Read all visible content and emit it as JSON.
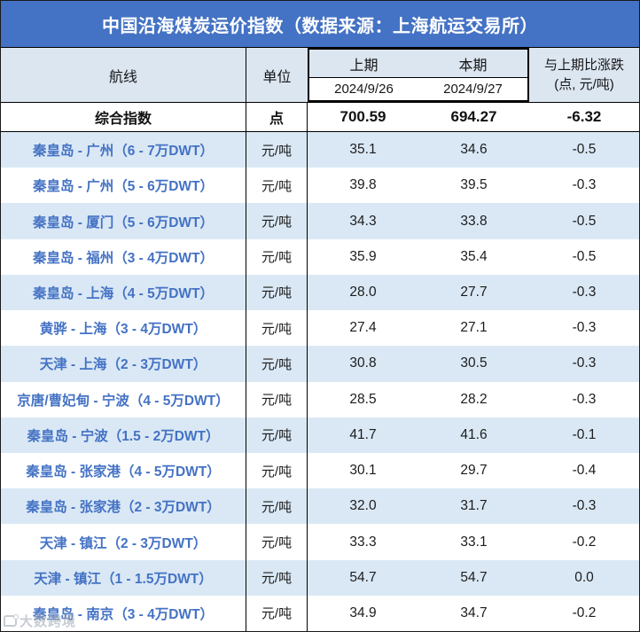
{
  "title": "中国沿海煤炭运价指数（数据来源：上海航运交易所）",
  "header": {
    "route_label": "航线",
    "unit_label": "单位",
    "prev_period_label": "上期",
    "curr_period_label": "本期",
    "prev_date": "2024/9/26",
    "curr_date": "2024/9/27",
    "change_label_line1": "与上期比涨跌",
    "change_label_line2": "(点, 元/吨)"
  },
  "summary": {
    "route": "综合指数",
    "unit": "点",
    "prev": "700.59",
    "curr": "694.27",
    "change": "-6.32"
  },
  "rows": [
    {
      "route": "秦皇岛 - 广州（6 - 7万DWT）",
      "unit": "元/吨",
      "prev": "35.1",
      "curr": "34.6",
      "change": "-0.5"
    },
    {
      "route": "秦皇岛 - 广州（5 - 6万DWT）",
      "unit": "元/吨",
      "prev": "39.8",
      "curr": "39.5",
      "change": "-0.3"
    },
    {
      "route": "秦皇岛 - 厦门（5 - 6万DWT）",
      "unit": "元/吨",
      "prev": "34.3",
      "curr": "33.8",
      "change": "-0.5"
    },
    {
      "route": "秦皇岛 - 福州（3 - 4万DWT）",
      "unit": "元/吨",
      "prev": "35.9",
      "curr": "35.4",
      "change": "-0.5"
    },
    {
      "route": "秦皇岛 - 上海（4 - 5万DWT）",
      "unit": "元/吨",
      "prev": "28.0",
      "curr": "27.7",
      "change": "-0.3"
    },
    {
      "route": "黄骅 - 上海（3 - 4万DWT）",
      "unit": "元/吨",
      "prev": "27.4",
      "curr": "27.1",
      "change": "-0.3"
    },
    {
      "route": "天津 - 上海（2 - 3万DWT）",
      "unit": "元/吨",
      "prev": "30.8",
      "curr": "30.5",
      "change": "-0.3"
    },
    {
      "route": "京唐/曹妃甸 - 宁波（4 - 5万DWT）",
      "unit": "元/吨",
      "prev": "28.5",
      "curr": "28.2",
      "change": "-0.3"
    },
    {
      "route": "秦皇岛 - 宁波（1.5 - 2万DWT）",
      "unit": "元/吨",
      "prev": "41.7",
      "curr": "41.6",
      "change": "-0.1"
    },
    {
      "route": "秦皇岛 - 张家港（4 - 5万DWT）",
      "unit": "元/吨",
      "prev": "30.1",
      "curr": "29.7",
      "change": "-0.4"
    },
    {
      "route": "秦皇岛 - 张家港（2 - 3万DWT）",
      "unit": "元/吨",
      "prev": "32.0",
      "curr": "31.7",
      "change": "-0.3"
    },
    {
      "route": "天津 - 镇江（2 - 3万DWT）",
      "unit": "元/吨",
      "prev": "33.3",
      "curr": "33.1",
      "change": "-0.2"
    },
    {
      "route": "天津 - 镇江（1 - 1.5万DWT）",
      "unit": "元/吨",
      "prev": "54.7",
      "curr": "54.7",
      "change": "0.0"
    },
    {
      "route": "秦皇岛 - 南京（3 - 4万DWT）",
      "unit": "元/吨",
      "prev": "34.9",
      "curr": "34.7",
      "change": "-0.2"
    }
  ],
  "watermark": {
    "text": "大数跨境"
  },
  "colors": {
    "title_bg": "#4472C4",
    "header_bg": "#DCE6F1",
    "stripe_bg": "#DAE8F5",
    "route_text": "#4472C4",
    "border": "#000000"
  },
  "chart_data": {
    "type": "table",
    "title": "中国沿海煤炭运价指数（数据来源：上海航运交易所）",
    "columns": [
      "航线",
      "单位",
      "上期 2024/9/26",
      "本期 2024/9/27",
      "与上期比涨跌 (点, 元/吨)"
    ],
    "rows": [
      [
        "综合指数",
        "点",
        700.59,
        694.27,
        -6.32
      ],
      [
        "秦皇岛 - 广州（6 - 7万DWT）",
        "元/吨",
        35.1,
        34.6,
        -0.5
      ],
      [
        "秦皇岛 - 广州（5 - 6万DWT）",
        "元/吨",
        39.8,
        39.5,
        -0.3
      ],
      [
        "秦皇岛 - 厦门（5 - 6万DWT）",
        "元/吨",
        34.3,
        33.8,
        -0.5
      ],
      [
        "秦皇岛 - 福州（3 - 4万DWT）",
        "元/吨",
        35.9,
        35.4,
        -0.5
      ],
      [
        "秦皇岛 - 上海（4 - 5万DWT）",
        "元/吨",
        28.0,
        27.7,
        -0.3
      ],
      [
        "黄骅 - 上海（3 - 4万DWT）",
        "元/吨",
        27.4,
        27.1,
        -0.3
      ],
      [
        "天津 - 上海（2 - 3万DWT）",
        "元/吨",
        30.8,
        30.5,
        -0.3
      ],
      [
        "京唐/曹妃甸 - 宁波（4 - 5万DWT）",
        "元/吨",
        28.5,
        28.2,
        -0.3
      ],
      [
        "秦皇岛 - 宁波（1.5 - 2万DWT）",
        "元/吨",
        41.7,
        41.6,
        -0.1
      ],
      [
        "秦皇岛 - 张家港（4 - 5万DWT）",
        "元/吨",
        30.1,
        29.7,
        -0.4
      ],
      [
        "秦皇岛 - 张家港（2 - 3万DWT）",
        "元/吨",
        32.0,
        31.7,
        -0.3
      ],
      [
        "天津 - 镇江（2 - 3万DWT）",
        "元/吨",
        33.3,
        33.1,
        -0.2
      ],
      [
        "天津 - 镇江（1 - 1.5万DWT）",
        "元/吨",
        54.7,
        54.7,
        0.0
      ],
      [
        "秦皇岛 - 南京（3 - 4万DWT）",
        "元/吨",
        34.9,
        34.7,
        -0.2
      ]
    ]
  }
}
